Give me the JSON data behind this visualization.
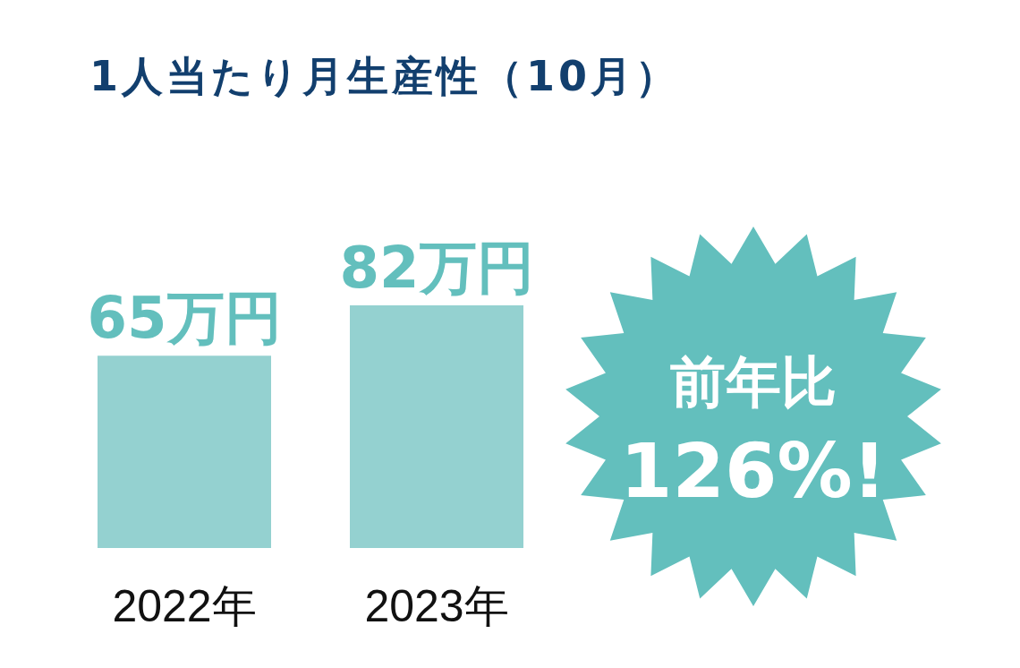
{
  "chart_data": {
    "type": "bar",
    "title": "1人当たり月生産性（10月）",
    "categories": [
      "2022年",
      "2023年"
    ],
    "values": [
      65,
      82
    ],
    "value_labels": [
      "65万円",
      "82万円"
    ],
    "color": "#94d1d0",
    "annotations": [
      "前年比",
      "126%!"
    ]
  }
}
